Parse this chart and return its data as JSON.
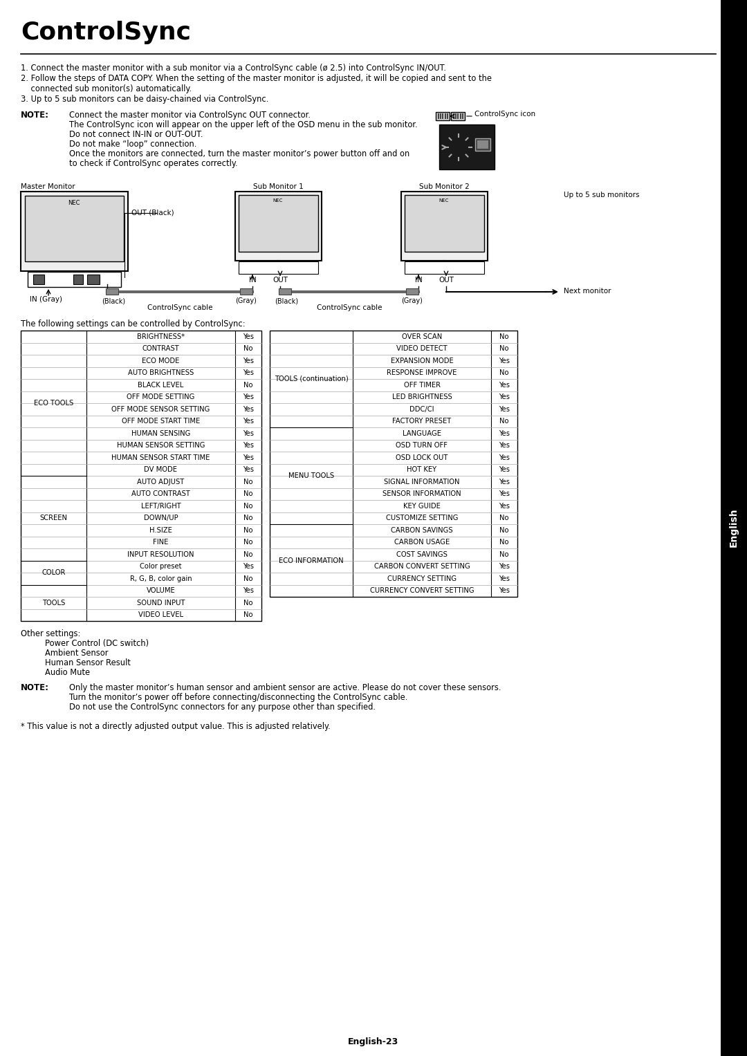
{
  "title": "ControlSync",
  "page_label": "English-23",
  "sidebar_text": "English",
  "bg_color": "#ffffff",
  "intro_lines": [
    "1. Connect the master monitor with a sub monitor via a ControlSync cable (ø 2.5) into ControlSync IN/OUT.",
    "2. Follow the steps of DATA COPY. When the setting of the master monitor is adjusted, it will be copied and sent to the",
    "    connected sub monitor(s) automatically.",
    "3. Up to 5 sub monitors can be daisy-chained via ControlSync."
  ],
  "note1_label": "NOTE:",
  "note1_lines": [
    "Connect the master monitor via ControlSync OUT connector.",
    "The ControlSync icon will appear on the upper left of the OSD menu in the sub monitor.",
    "Do not connect IN-IN or OUT-OUT.",
    "Do not make “loop” connection.",
    "Once the monitors are connected, turn the master monitor’s power button off and on",
    "to check if ControlSync operates correctly."
  ],
  "controlsync_icon_label": "ControlSync icon",
  "diagram_label": "The following settings can be controlled by ControlSync:",
  "master_monitor_label": "Master Monitor",
  "out_black_label": "OUT (Black)",
  "in_gray_label": "IN (Gray)",
  "black_label": "(Black)",
  "gray_label": "(Gray)",
  "cable_label": "ControlSync cable",
  "sub1_label": "Sub Monitor 1",
  "sub2_label": "Sub Monitor 2",
  "in_label": "IN",
  "out_label": "OUT",
  "up_to_label": "Up to 5 sub monitors",
  "next_monitor_label": "Next monitor",
  "table_left": [
    [
      "ECO TOOLS",
      "BRIGHTNESS*",
      "Yes"
    ],
    [
      "",
      "CONTRAST",
      "No"
    ],
    [
      "",
      "ECO MODE",
      "Yes"
    ],
    [
      "",
      "AUTO BRIGHTNESS",
      "Yes"
    ],
    [
      "",
      "BLACK LEVEL",
      "No"
    ],
    [
      "",
      "OFF MODE SETTING",
      "Yes"
    ],
    [
      "",
      "OFF MODE SENSOR SETTING",
      "Yes"
    ],
    [
      "",
      "OFF MODE START TIME",
      "Yes"
    ],
    [
      "",
      "HUMAN SENSING",
      "Yes"
    ],
    [
      "",
      "HUMAN SENSOR SETTING",
      "Yes"
    ],
    [
      "",
      "HUMAN SENSOR START TIME",
      "Yes"
    ],
    [
      "",
      "DV MODE",
      "Yes"
    ],
    [
      "SCREEN",
      "AUTO ADJUST",
      "No"
    ],
    [
      "",
      "AUTO CONTRAST",
      "No"
    ],
    [
      "",
      "LEFT/RIGHT",
      "No"
    ],
    [
      "",
      "DOWN/UP",
      "No"
    ],
    [
      "",
      "H.SIZE",
      "No"
    ],
    [
      "",
      "FINE",
      "No"
    ],
    [
      "",
      "INPUT RESOLUTION",
      "No"
    ],
    [
      "COLOR",
      "Color preset",
      "Yes"
    ],
    [
      "",
      "R, G, B, color gain",
      "No"
    ],
    [
      "TOOLS",
      "VOLUME",
      "Yes"
    ],
    [
      "",
      "SOUND INPUT",
      "No"
    ],
    [
      "",
      "VIDEO LEVEL",
      "No"
    ]
  ],
  "table_right": [
    [
      "TOOLS (continuation)",
      "OVER SCAN",
      "No"
    ],
    [
      "",
      "VIDEO DETECT",
      "No"
    ],
    [
      "",
      "EXPANSION MODE",
      "Yes"
    ],
    [
      "",
      "RESPONSE IMPROVE",
      "No"
    ],
    [
      "",
      "OFF TIMER",
      "Yes"
    ],
    [
      "",
      "LED BRIGHTNESS",
      "Yes"
    ],
    [
      "",
      "DDC/CI",
      "Yes"
    ],
    [
      "",
      "FACTORY PRESET",
      "No"
    ],
    [
      "MENU TOOLS",
      "LANGUAGE",
      "Yes"
    ],
    [
      "",
      "OSD TURN OFF",
      "Yes"
    ],
    [
      "",
      "OSD LOCK OUT",
      "Yes"
    ],
    [
      "",
      "HOT KEY",
      "Yes"
    ],
    [
      "",
      "SIGNAL INFORMATION",
      "Yes"
    ],
    [
      "",
      "SENSOR INFORMATION",
      "Yes"
    ],
    [
      "",
      "KEY GUIDE",
      "Yes"
    ],
    [
      "",
      "CUSTOMIZE SETTING",
      "No"
    ],
    [
      "ECO INFORMATION",
      "CARBON SAVINGS",
      "No"
    ],
    [
      "",
      "CARBON USAGE",
      "No"
    ],
    [
      "",
      "COST SAVINGS",
      "No"
    ],
    [
      "",
      "CARBON CONVERT SETTING",
      "Yes"
    ],
    [
      "",
      "CURRENCY SETTING",
      "Yes"
    ],
    [
      "",
      "CURRENCY CONVERT SETTING",
      "Yes"
    ]
  ],
  "other_settings_label": "Other settings:",
  "other_settings_items": [
    "Power Control (DC switch)",
    "Ambient Sensor",
    "Human Sensor Result",
    "Audio Mute"
  ],
  "note2_label": "NOTE:",
  "note2_lines": [
    "Only the master monitor’s human sensor and ambient sensor are active. Please do not cover these sensors.",
    "Turn the monitor’s power off before connecting/disconnecting the ControlSync cable.",
    "Do not use the ControlSync connectors for any purpose other than specified."
  ],
  "footnote": "* This value is not a directly adjusted output value. This is adjusted relatively."
}
